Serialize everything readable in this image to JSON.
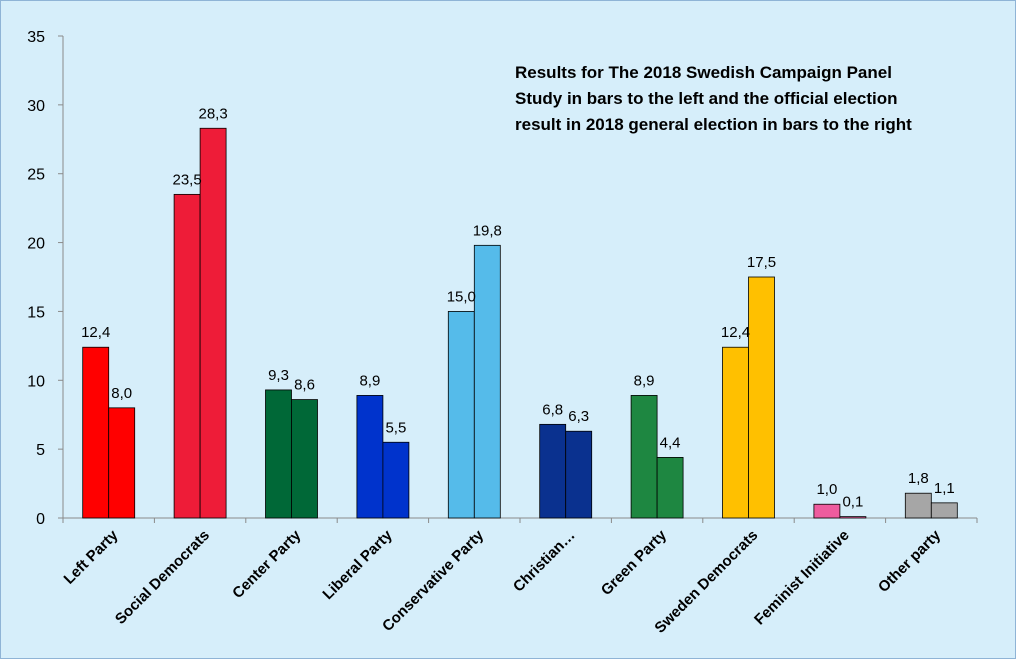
{
  "chart_data": {
    "type": "bar",
    "title_lines": [
      "Results for The 2018 Swedish Campaign Panel",
      "Study in bars to the left and the official election",
      "result in 2018 general election in bars to the right"
    ],
    "xlabel": "",
    "ylabel": "",
    "ylim": [
      0,
      35
    ],
    "yticks": [
      "0",
      "5",
      "10",
      "15",
      "20",
      "25",
      "30",
      "35"
    ],
    "grid": false,
    "legend": "none",
    "categories": [
      "Left Party",
      "Social Democrats",
      "Center Party",
      "Liberal Party",
      "Conservative Party",
      "Christian…",
      "Green Party",
      "Sweden Democrats",
      "Feminist Initiative",
      "Other party"
    ],
    "series": [
      {
        "values": [
          12.4,
          23.5,
          9.3,
          8.9,
          15.0,
          6.8,
          8.9,
          12.4,
          1.0,
          1.8
        ],
        "labels": [
          "12,4",
          "23,5",
          "9,3",
          "8,9",
          "15,0",
          "6,8",
          "8,9",
          "12,4",
          "1,0",
          "1,8"
        ]
      },
      {
        "values": [
          8.0,
          28.3,
          8.6,
          5.5,
          19.8,
          6.3,
          4.4,
          17.5,
          0.1,
          1.1
        ],
        "labels": [
          "8,0",
          "28,3",
          "8,6",
          "5,5",
          "19,8",
          "6,3",
          "4,4",
          "17,5",
          "0,1",
          "1,1"
        ]
      }
    ],
    "bar_colors": [
      "#ff0000",
      "#ee1c38",
      "#006837",
      "#0033cc",
      "#55bbea",
      "#0a318f",
      "#1e8741",
      "#ffc000",
      "#ee5c9e",
      "#a6a6a6"
    ],
    "colors": {
      "background": "#d6eefa",
      "border": "#8fb4d6",
      "axis": "#8a8a8a",
      "bar_outline": "#000000"
    }
  }
}
